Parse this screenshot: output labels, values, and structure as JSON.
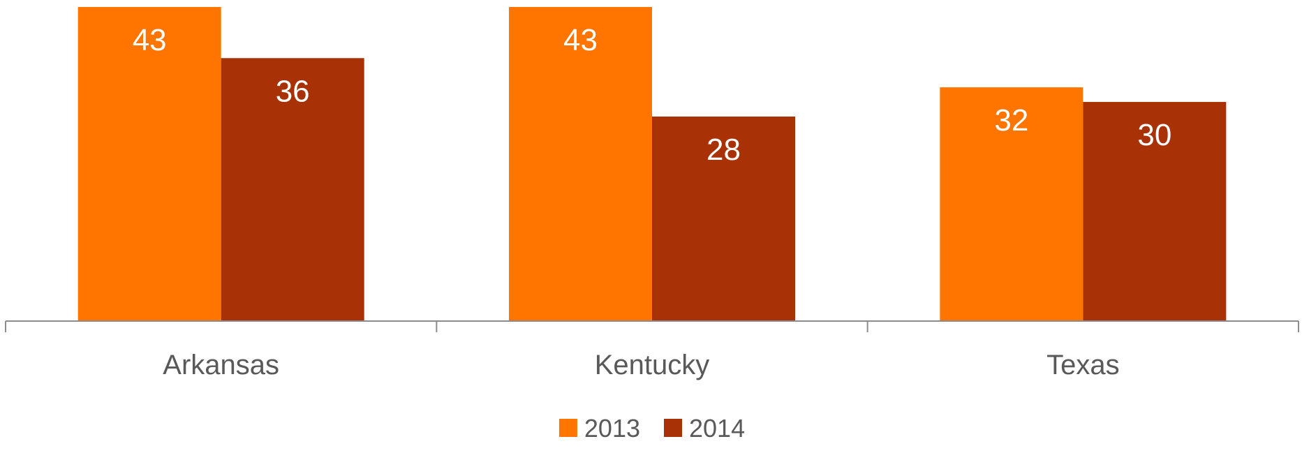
{
  "chart_data": {
    "type": "bar",
    "categories": [
      "Arkansas",
      "Kentucky",
      "Texas"
    ],
    "series": [
      {
        "name": "2013",
        "color": "#ff7500",
        "values": [
          43,
          43,
          32
        ]
      },
      {
        "name": "2014",
        "color": "#a83206",
        "values": [
          36,
          28,
          30
        ]
      }
    ],
    "ylim": [
      0,
      43
    ],
    "grid": false,
    "legend": "bottom-center",
    "data_labels": true
  }
}
